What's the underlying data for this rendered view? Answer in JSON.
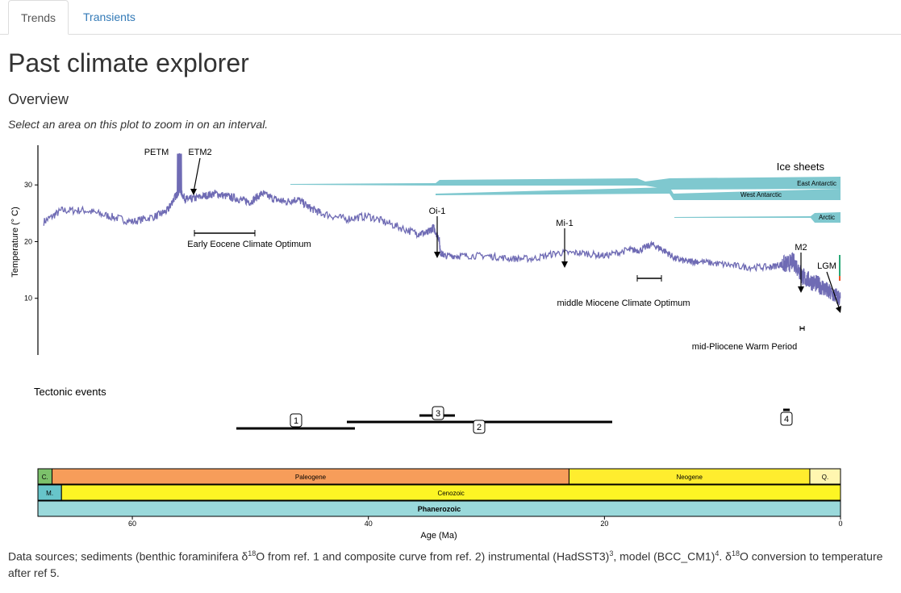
{
  "tabs": [
    {
      "label": "Trends",
      "active": true
    },
    {
      "label": "Transients",
      "active": false
    }
  ],
  "page_title": "Past climate explorer",
  "section_title": "Overview",
  "hint": "Select an area on this plot to zoom in on an interval.",
  "colors": {
    "series": "#6f6bb4",
    "ice": "#7fc8cf",
    "paleogene": "#f79d5a",
    "neogene": "#ffed2e",
    "quaternary": "#fff6b0",
    "cenozoic": "#fdf524",
    "phanerozoic": "#9ad9db",
    "mesozoic": "#67c5ca",
    "cenozoic_short": "#7cc16b",
    "tab_link": "#337ab7"
  },
  "chart_data": {
    "type": "line",
    "ylabel": "Temperature (° C)",
    "xlabel": "Age (Ma)",
    "xlim": [
      68,
      0
    ],
    "ylim": [
      0,
      37
    ],
    "y_ticks": [
      "10",
      "20",
      "30"
    ],
    "x_ticks": [
      "60",
      "40",
      "20",
      "0"
    ],
    "series": [
      {
        "x": [
          67.5,
          66,
          64,
          62,
          60,
          58,
          57,
          56.5,
          56,
          55.5,
          55,
          54,
          53,
          52,
          51,
          50,
          49,
          48,
          47,
          46,
          45,
          44,
          42,
          40,
          38,
          36,
          35,
          34.5,
          34,
          33.9,
          33.5,
          32,
          30,
          28,
          26,
          24,
          22,
          20,
          18,
          17,
          16,
          15,
          14,
          13,
          12,
          10,
          8,
          6,
          5,
          4.5,
          4,
          3.5,
          3.3,
          3,
          2.5,
          2,
          1.5,
          1,
          0.5,
          0
        ],
        "y": [
          23.5,
          25.5,
          25.5,
          24.5,
          23.5,
          24.5,
          25.5,
          27.5,
          29,
          27.5,
          27.5,
          28,
          28.5,
          28,
          27.5,
          27,
          28.5,
          27.5,
          27,
          27.5,
          26,
          25,
          24,
          24.5,
          23,
          21.5,
          21.5,
          22.5,
          20.5,
          18,
          17.5,
          17.5,
          17.5,
          17,
          17,
          18,
          18,
          17.5,
          18.5,
          18.5,
          19.5,
          18.5,
          17,
          16.5,
          16.5,
          16,
          15.5,
          15.5,
          16,
          16,
          16.5,
          15,
          14,
          13.5,
          13,
          12.5,
          12,
          11,
          10.5,
          10
        ]
      }
    ],
    "annotations": [
      {
        "label": "PETM",
        "x": 56,
        "y": 34
      },
      {
        "label": "ETM2",
        "x": 54,
        "y": 29
      },
      {
        "label": "Early Eocene Climate Optimum",
        "x_range": [
          53,
          48
        ]
      },
      {
        "label": "Oi-1",
        "x": 33.9,
        "y": 19
      },
      {
        "label": "Mi-1",
        "x": 23,
        "y": 18
      },
      {
        "label": "middle Miocene Climate Optimum",
        "x_range": [
          17,
          15
        ]
      },
      {
        "label": "M2",
        "x": 3.3,
        "y": 14
      },
      {
        "label": "LGM",
        "x": 0.02,
        "y": 9
      },
      {
        "label": "mid-Pliocene Warm Period",
        "x_range": [
          3.3,
          3.0
        ]
      }
    ],
    "ice_sheets": {
      "title": "Ice sheets",
      "items": [
        {
          "label": "East Antarctic",
          "start": 34
        },
        {
          "label": "West Antarctic",
          "start": 34
        },
        {
          "label": "Arctic",
          "start": 3
        }
      ]
    },
    "tectonic": {
      "title": "Tectonic events",
      "events": [
        {
          "label": "1",
          "range": [
            51,
            41
          ]
        },
        {
          "label": "2",
          "range": [
            41.5,
            19.5
          ]
        },
        {
          "label": "3",
          "range": [
            35.5,
            32.5
          ]
        },
        {
          "label": "4",
          "range": [
            4.5,
            4
          ]
        }
      ]
    },
    "timescale": {
      "rows": [
        [
          {
            "label": "C.",
            "range": [
              68,
              66.8
            ],
            "color": "#7cc16b"
          },
          {
            "label": "Paleogene",
            "range": [
              66.8,
              23
            ],
            "color": "#f79d5a"
          },
          {
            "label": "Neogene",
            "range": [
              23,
              2.6
            ],
            "color": "#ffed2e"
          },
          {
            "label": "Q.",
            "range": [
              2.6,
              0
            ],
            "color": "#fff6b0"
          }
        ],
        [
          {
            "label": "M.",
            "range": [
              68,
              66
            ],
            "color": "#67c5ca"
          },
          {
            "label": "Cenozoic",
            "range": [
              66,
              0
            ],
            "color": "#fdf524"
          }
        ],
        [
          {
            "label": "Phanerozoic",
            "range": [
              68,
              0
            ],
            "color": "#9ad9db",
            "bold": true
          }
        ]
      ]
    }
  },
  "footer": {
    "p1": "Data sources; sediments (benthic foraminifera δ",
    "sup1": "18",
    "p2": "O from ref. 1 and composite curve from ref. 2) instrumental (HadSST3)",
    "sup2": "3",
    "p3": ", model (BCC_CM1)",
    "sup3": "4",
    "p4": ". δ",
    "sup4": "18",
    "p5": "O conversion to temperature after ref 5."
  }
}
